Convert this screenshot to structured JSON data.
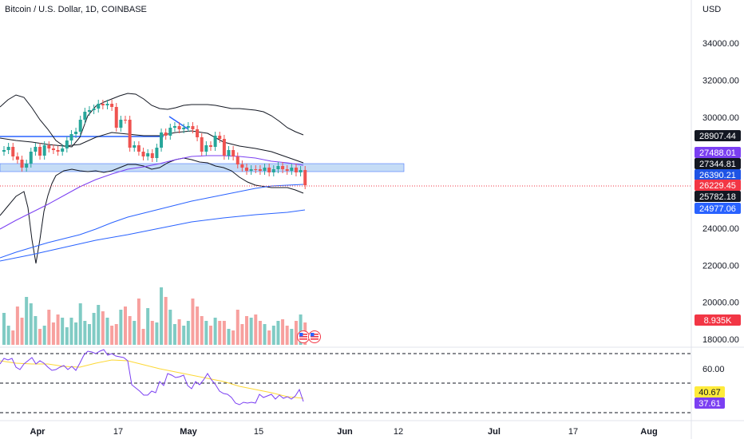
{
  "header": {
    "symbol_title": "Bitcoin / U.S. Dollar, 1D, COINBASE"
  },
  "price_axis": {
    "currency": "USD",
    "ticks": [
      "34000.00",
      "32000.00",
      "30000.00",
      "24000.00",
      "22000.00",
      "20000.00",
      "18000.00"
    ],
    "tick_values": [
      34000,
      32000,
      30000,
      24000,
      22000,
      20000,
      18000
    ]
  },
  "rsi_axis": {
    "ticks": [
      "60.00"
    ],
    "tick_values": [
      60
    ]
  },
  "time_axis": [
    {
      "label": "Apr",
      "bold": true
    },
    {
      "label": "17",
      "bold": false
    },
    {
      "label": "May",
      "bold": true
    },
    {
      "label": "15",
      "bold": false
    },
    {
      "label": "Jun",
      "bold": true
    },
    {
      "label": "12",
      "bold": false
    },
    {
      "label": "Jul",
      "bold": true
    },
    {
      "label": "17",
      "bold": false
    },
    {
      "label": "Aug",
      "bold": true
    }
  ],
  "price_badges": [
    {
      "label": "28907.44",
      "value": 28907.44,
      "bg": "#131722",
      "fg": "#ffffff"
    },
    {
      "label": "27488.01",
      "value": 27488.01,
      "bg": "#7b3ff2",
      "fg": "#ffffff"
    },
    {
      "label": "27344.81",
      "value": 27344.81,
      "bg": "#131722",
      "fg": "#ffffff"
    },
    {
      "label": "26390.21",
      "value": 26390.21,
      "bg": "#1e53e5",
      "fg": "#ffffff"
    },
    {
      "label": "26229.45",
      "value": 26229.45,
      "bg": "#f23645",
      "fg": "#ffffff"
    },
    {
      "label": "25782.18",
      "value": 25782.18,
      "bg": "#131722",
      "fg": "#ffffff"
    },
    {
      "label": "24977.06",
      "value": 24977.06,
      "bg": "#2962ff",
      "fg": "#ffffff"
    }
  ],
  "volume_badge": {
    "label": "8.935K",
    "bg": "#f23645",
    "fg": "#ffffff"
  },
  "rsi_badges": [
    {
      "label": "40.67",
      "bg": "#ffeb3b",
      "fg": "#131722"
    },
    {
      "label": "37.61",
      "bg": "#7b3ff2",
      "fg": "#ffffff"
    }
  ],
  "colors": {
    "up": "#26a69a",
    "down": "#ef5350",
    "up_volume": "#80cbc4",
    "down_volume": "#f7a09e",
    "ma_fast": "#7b3ff2",
    "ma_slow": "#2962ff",
    "bollinger": "#131722",
    "level_line": "#2962ff",
    "zone_fill": "#bbd7f5",
    "rsi": "#7b3ff2",
    "rsi_ma": "#fdd835",
    "last_price_line": "#f23645"
  },
  "events": [
    {
      "icon": "us-flag-icon"
    },
    {
      "icon": "us-flag-icon"
    }
  ]
}
